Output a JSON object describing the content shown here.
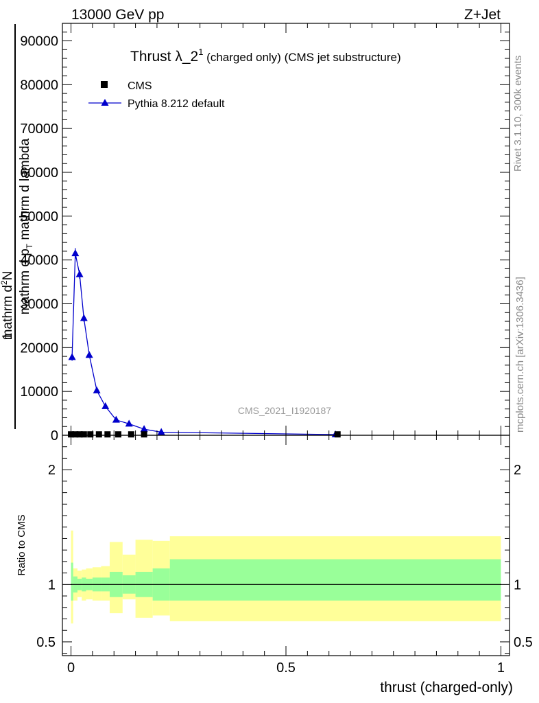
{
  "header": {
    "left": "13000 GeV pp",
    "right": "Z+Jet"
  },
  "title": {
    "main": "Thrust λ_2",
    "sup": "1",
    "rest": " (charged only) (CMS jet substructure)"
  },
  "legend": {
    "cms": "CMS",
    "pythia": "Pythia 8.212 default"
  },
  "side_labels": {
    "rivet": "Rivet 3.1.10,  300k events",
    "mcplots": "mcplots.cern.ch [arXiv:1306.3436]"
  },
  "analysis_label": "CMS_2021_I1920187",
  "ylabel_main": {
    "one": "1",
    "numerator": "mathrm d",
    "numerator_sup": "2",
    "numerator_rest": "N",
    "denominator": "mathrm d p",
    "denominator_sub": "T",
    "denominator_rest": " mathrm d lambda"
  },
  "ylabel_ratio": "Ratio to CMS",
  "xlabel": "thrust (charged-only)",
  "colors": {
    "mc": "#0000cc",
    "band_inner": "#99ff99",
    "band_outer": "#ffff99",
    "side_text": "#8a8a8a"
  },
  "chart_data": [
    {
      "type": "line",
      "panel": "main",
      "xlim": [
        -0.02,
        1.02
      ],
      "ylim": [
        0,
        94000
      ],
      "yticks": [
        0,
        10000,
        20000,
        30000,
        40000,
        50000,
        60000,
        70000,
        80000,
        90000
      ],
      "ytick_labels": [
        "0",
        "10000",
        "20000",
        "30000",
        "40000",
        "50000",
        "60000",
        "70000",
        "80000",
        "90000"
      ],
      "series": [
        {
          "name": "CMS",
          "marker": "square",
          "x": [
            0.0,
            0.01,
            0.02,
            0.03,
            0.045,
            0.065,
            0.085,
            0.11,
            0.14,
            0.17,
            0.62
          ],
          "y": [
            200,
            200,
            200,
            200,
            200,
            200,
            200,
            200,
            200,
            200,
            200
          ]
        },
        {
          "name": "Pythia 8.212 default",
          "marker": "triangle",
          "bin_edges": [
            0.0,
            0.005,
            0.015,
            0.025,
            0.035,
            0.05,
            0.07,
            0.09,
            0.12,
            0.15,
            0.19,
            0.23,
            1.0
          ],
          "x": [
            0.0025,
            0.01,
            0.02,
            0.03,
            0.0425,
            0.06,
            0.08,
            0.105,
            0.135,
            0.17,
            0.21,
            0.615
          ],
          "y": [
            17800,
            41500,
            36700,
            26700,
            18300,
            10200,
            6600,
            3500,
            2600,
            1400,
            700,
            150
          ],
          "yerr": [
            800,
            1200,
            1000,
            800,
            500,
            300,
            200,
            150,
            120,
            80,
            50,
            10
          ]
        }
      ]
    },
    {
      "type": "area",
      "panel": "ratio",
      "xlim": [
        -0.02,
        1.02
      ],
      "ylim": [
        0.38,
        2.3
      ],
      "yticks": [
        0.5,
        1,
        2
      ],
      "ytick_labels": [
        "0.5",
        "1",
        "2"
      ],
      "xticks": [
        0,
        0.5,
        1
      ],
      "xtick_labels": [
        "0",
        "0.5",
        "1"
      ],
      "reference_line": 1,
      "bands": [
        {
          "name": "inner",
          "x0": [
            0.0,
            0.005,
            0.015,
            0.025,
            0.035,
            0.05,
            0.07,
            0.09,
            0.12,
            0.15,
            0.19,
            0.23
          ],
          "x1": [
            0.005,
            0.015,
            0.025,
            0.035,
            0.05,
            0.07,
            0.09,
            0.12,
            0.15,
            0.19,
            0.23,
            1.0
          ],
          "lo": [
            0.86,
            0.93,
            0.95,
            0.94,
            0.95,
            0.94,
            0.94,
            0.89,
            0.92,
            0.89,
            0.86,
            0.86
          ],
          "hi": [
            1.19,
            1.07,
            1.05,
            1.06,
            1.05,
            1.06,
            1.06,
            1.11,
            1.08,
            1.11,
            1.14,
            1.22
          ]
        },
        {
          "name": "outer",
          "x0": [
            0.0,
            0.005,
            0.015,
            0.025,
            0.035,
            0.05,
            0.07,
            0.09,
            0.12,
            0.15,
            0.19,
            0.23
          ],
          "x1": [
            0.005,
            0.015,
            0.025,
            0.035,
            0.05,
            0.07,
            0.09,
            0.12,
            0.15,
            0.19,
            0.23,
            1.0
          ],
          "lo": [
            0.66,
            0.86,
            0.89,
            0.86,
            0.87,
            0.86,
            0.86,
            0.75,
            0.87,
            0.71,
            0.73,
            0.68
          ],
          "hi": [
            1.47,
            1.14,
            1.12,
            1.13,
            1.14,
            1.15,
            1.16,
            1.37,
            1.26,
            1.39,
            1.38,
            1.42
          ]
        }
      ]
    }
  ]
}
